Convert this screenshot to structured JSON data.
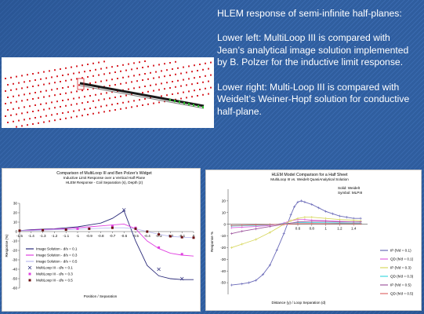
{
  "slide": {
    "heading": "HLEM response of semi-infinite half-planes:",
    "paragraph_left": "Lower left: MultiLoop III is compared with Jean’s analytical image solution implemented by B. Polzer for the inductive limit response.",
    "paragraph_right": "Lower right: Multi-Loop III is compared with Weidelt’s Weiner-Hopf solution for conductive half-plane."
  },
  "colors": {
    "background": "#2f5d9e",
    "text": "#ffffff",
    "mesh_dot": "#d8232a",
    "mesh_line": "#1a1a1a",
    "mesh_accent": "#2fc42f"
  },
  "chart_data": [
    {
      "type": "line",
      "title": "Comparison of MultiLoop III and Ben Polzer's Widget",
      "subtitle": "Inductive Limit Response over a Vertical Half Plane",
      "subtitle2": "HLEM Response - Coil Separation (s), Depth (z)",
      "xlabel": "Position / Separation",
      "ylabel": "Response (%)",
      "xlim": [
        -1.5,
        0.0
      ],
      "ylim": [
        -60,
        30
      ],
      "x_ticks": [
        -1.5,
        -1.4,
        -1.3,
        -1.2,
        -1.1,
        -1.0,
        -0.9,
        -0.8,
        -0.7,
        -0.6,
        -0.5,
        -0.4,
        -0.3,
        -0.2,
        -0.1,
        0.0
      ],
      "x_tick_labels": [
        "-1.5",
        "-1.4",
        "-1.3",
        "-1.2",
        "-1.1",
        "-1",
        "-0.9",
        "-0.8",
        "-0.7",
        "-0.6",
        "-0.5",
        "-0.4",
        "-0.3",
        "-0.2",
        "-0.1",
        "0"
      ],
      "y_ticks": [
        30,
        20,
        10,
        0,
        -10,
        -20,
        -30,
        -40,
        -50,
        -60
      ],
      "legend_position": "left",
      "grid": false,
      "series": [
        {
          "name": "Image Solution - d/s = 0.1",
          "style": "line",
          "color": "#2b2b7a",
          "x": [
            -1.5,
            -1.4,
            -1.3,
            -1.2,
            -1.1,
            -1.0,
            -0.9,
            -0.8,
            -0.7,
            -0.6,
            -0.5,
            -0.4,
            -0.3,
            -0.2,
            -0.1,
            0.0
          ],
          "y": [
            1,
            2,
            2.5,
            3,
            4,
            5,
            7,
            9,
            14,
            22,
            -10,
            -36,
            -47,
            -50,
            -51,
            -51
          ]
        },
        {
          "name": "Image Solution - d/s = 0.3",
          "style": "line",
          "color": "#e040e0",
          "x": [
            -1.5,
            -1.4,
            -1.3,
            -1.2,
            -1.1,
            -1.0,
            -0.9,
            -0.8,
            -0.7,
            -0.6,
            -0.5,
            -0.4,
            -0.3,
            -0.2,
            -0.1,
            0.0
          ],
          "y": [
            1,
            1.5,
            2,
            2.5,
            3,
            4,
            5,
            6,
            7,
            8,
            3,
            -10,
            -18,
            -23,
            -25,
            -26
          ]
        },
        {
          "name": "Image Solution - d/s = 0.5",
          "style": "line",
          "color": "#bcbcf0",
          "x": [
            -1.5,
            -1.4,
            -1.3,
            -1.2,
            -1.1,
            -1.0,
            -0.9,
            -0.8,
            -0.7,
            -0.6,
            -0.5,
            -0.4,
            -0.3,
            -0.2,
            -0.1,
            0.0
          ],
          "y": [
            1,
            1,
            1.5,
            2,
            2,
            2.5,
            3,
            3.5,
            4,
            4,
            3,
            0,
            -3,
            -5,
            -6,
            -6.5
          ]
        },
        {
          "name": "MultiLoop III - d/s = 0.1",
          "style": "marker",
          "marker": "x",
          "color": "#2b2b7a",
          "x": [
            -0.6,
            -0.3,
            -0.1
          ],
          "y": [
            23,
            -40,
            -50
          ]
        },
        {
          "name": "MultiLoop III - d/s = 0.3",
          "style": "marker",
          "marker": "square",
          "color": "#e040e0",
          "x": [
            -1.0,
            -0.7,
            -0.5,
            -0.3,
            -0.1
          ],
          "y": [
            3,
            6,
            4,
            -17,
            -24
          ]
        },
        {
          "name": "MultiLoop III - d/s = 0.5",
          "style": "marker",
          "marker": "square",
          "color": "#6b1010",
          "x": [
            -1.5,
            -1.3,
            -1.1,
            -0.9,
            -0.7,
            -0.5,
            -0.4,
            -0.3,
            -0.2,
            -0.1,
            0.0
          ],
          "y": [
            1,
            1.5,
            2,
            3,
            4,
            3,
            0,
            -3,
            -5,
            -6,
            -6.5
          ]
        }
      ]
    },
    {
      "type": "line",
      "title": "HLEM Model Comparison for a Half Sheet",
      "subtitle": "MultiLoop III vs. Weidelt QuasiAnalytical Solution",
      "annotation": [
        "Solid: Weidelt",
        "Symbol: MLPIII"
      ],
      "xlabel": "Distance (y) / Loop Separation (d)",
      "ylabel": "Response %",
      "xlim": [
        -0.4,
        1.6
      ],
      "ylim": [
        -60,
        30
      ],
      "x_ticks": [
        0.6,
        0.8,
        1.0,
        1.2,
        1.4
      ],
      "x_tick_labels": [
        "0.6",
        "0.8",
        "1",
        "1.2",
        "1.4"
      ],
      "y_ticks": [
        20,
        10,
        0,
        -10,
        -20,
        -30,
        -40,
        -50
      ],
      "legend_position": "right",
      "grid": false,
      "series": [
        {
          "name": "IP (h/d = 0.1)",
          "color": "#6a6ab8",
          "x": [
            -0.35,
            -0.2,
            -0.1,
            0.0,
            0.1,
            0.2,
            0.3,
            0.4,
            0.5,
            0.55,
            0.6,
            0.65,
            0.7,
            0.8,
            0.9,
            1.0,
            1.1,
            1.2,
            1.3,
            1.4,
            1.5
          ],
          "y": [
            -52,
            -51,
            -50,
            -48,
            -43,
            -35,
            -22,
            -8,
            8,
            15,
            19,
            20,
            19,
            17,
            14,
            11,
            9,
            7,
            6,
            5,
            5
          ]
        },
        {
          "name": "QD (h/d = 0.1)",
          "color": "#e062e0",
          "x": [
            -0.35,
            -0.2,
            0.0,
            0.2,
            0.4,
            0.5,
            0.6,
            0.7,
            0.8,
            1.0,
            1.2,
            1.4,
            1.5
          ],
          "y": [
            -3,
            -2.5,
            -2,
            -1,
            1,
            3,
            4,
            4,
            3.5,
            3,
            2.5,
            2,
            2
          ]
        },
        {
          "name": "IP (h/d = 0.3)",
          "color": "#d8d860",
          "x": [
            -0.35,
            -0.2,
            0.0,
            0.2,
            0.4,
            0.5,
            0.6,
            0.7,
            0.8,
            1.0,
            1.2,
            1.4,
            1.5
          ],
          "y": [
            -20,
            -17,
            -13,
            -7,
            0,
            3,
            5,
            6,
            6,
            5,
            4,
            3.5,
            3
          ]
        },
        {
          "name": "QD (h/d = 0.3)",
          "color": "#40d8e0",
          "x": [
            -0.35,
            -0.2,
            0.0,
            0.2,
            0.4,
            0.6,
            0.8,
            1.0,
            1.2,
            1.4,
            1.5
          ],
          "y": [
            -1.5,
            -1.2,
            -1,
            -0.5,
            0.5,
            1.5,
            1.5,
            1.3,
            1.1,
            1,
            1
          ]
        },
        {
          "name": "IP (h/d = 0.5)",
          "color": "#a05aa0",
          "x": [
            -0.35,
            -0.2,
            0.0,
            0.2,
            0.4,
            0.6,
            0.8,
            1.0,
            1.2,
            1.4,
            1.5
          ],
          "y": [
            -8,
            -6,
            -4,
            -2,
            0,
            2,
            2.5,
            2.5,
            2,
            2,
            2
          ]
        },
        {
          "name": "QD (h/d = 0.5)",
          "color": "#e06a6a",
          "x": [
            -0.35,
            -0.2,
            0.0,
            0.2,
            0.4,
            0.6,
            0.8,
            1.0,
            1.2,
            1.4,
            1.5
          ],
          "y": [
            -1,
            -0.8,
            -0.5,
            -0.3,
            0,
            0.5,
            0.6,
            0.5,
            0.5,
            0.4,
            0.4
          ]
        }
      ]
    }
  ]
}
